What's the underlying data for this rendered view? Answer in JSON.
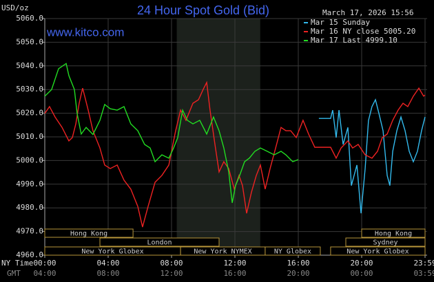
{
  "chart_data": {
    "type": "line",
    "title": "24 Hour Spot Gold (Bid)",
    "y_label": "USD/oz",
    "timestamp": "March 17, 2026 15:56",
    "watermark": "www.kitco.com",
    "x_label": "NY Time",
    "x2_label": "GMT",
    "xlim": [
      0,
      24
    ],
    "ylim": [
      4960,
      5060
    ],
    "grid": true,
    "legend": "top-right",
    "yticks": [
      {
        "value": 4960,
        "label": "4960.0"
      },
      {
        "value": 4970,
        "label": "4970.0"
      },
      {
        "value": 4980,
        "label": "4980.0"
      },
      {
        "value": 4990,
        "label": "4990.0"
      },
      {
        "value": 5000,
        "label": "5000.0"
      },
      {
        "value": 5010,
        "label": "5010.0"
      },
      {
        "value": 5020,
        "label": "5020.0"
      },
      {
        "value": 5030,
        "label": "5030.0"
      },
      {
        "value": 5040,
        "label": "5040.0"
      },
      {
        "value": 5050,
        "label": "5050.0"
      },
      {
        "value": 5060,
        "label": "5060.0"
      }
    ],
    "xticks": [
      {
        "value": 0,
        "label": "00:00"
      },
      {
        "value": 4,
        "label": "04:00"
      },
      {
        "value": 8,
        "label": "08:00"
      },
      {
        "value": 12,
        "label": "12:00"
      },
      {
        "value": 16,
        "label": "16:00"
      },
      {
        "value": 20,
        "label": "20:00"
      },
      {
        "value": 24,
        "label": "23:59"
      }
    ],
    "x2ticks": [
      {
        "value": 0,
        "label": "04:00"
      },
      {
        "value": 4,
        "label": "08:00"
      },
      {
        "value": 8,
        "label": "12:00"
      },
      {
        "value": 12,
        "label": "16:00"
      },
      {
        "value": 16,
        "label": "20:00"
      },
      {
        "value": 20,
        "label": "00:00"
      },
      {
        "value": 24,
        "label": "03:59"
      }
    ],
    "shaded_range": [
      8.33,
      13.6
    ],
    "sessions": [
      {
        "label": "Hong Kong",
        "row": 0,
        "start": 0,
        "end": 5.57
      },
      {
        "label": "Hong Kong",
        "row": 0,
        "start": 20,
        "end": 24
      },
      {
        "label": "London",
        "row": 1,
        "start": 3.48,
        "end": 11
      },
      {
        "label": "Sydney",
        "row": 1,
        "start": 19,
        "end": 24
      },
      {
        "label": "New York Globex",
        "row": 2,
        "start": 0,
        "end": 8.57
      },
      {
        "label": "New York NYMEX",
        "row": 2,
        "start": 8.57,
        "end": 13.91
      },
      {
        "label": "NY Globex",
        "row": 2,
        "start": 13.91,
        "end": 17.39
      },
      {
        "label": "New York Globex",
        "row": 2,
        "start": 18.04,
        "end": 24
      }
    ],
    "series": [
      {
        "name": "Mar 15 Sunday",
        "color": "#33bbee",
        "x": [
          17.3,
          18.04,
          18.17,
          18.39,
          18.57,
          18.83,
          19.13,
          19.35,
          19.7,
          19.96,
          20.22,
          20.43,
          20.65,
          20.87,
          21.09,
          21.35,
          21.61,
          21.78,
          21.96,
          22.22,
          22.48,
          22.74,
          23,
          23.26,
          23.52,
          23.78,
          24
        ],
        "values": [
          5017.8,
          5017.8,
          5021.3,
          5009.7,
          5021.3,
          5006.8,
          5014,
          4989.4,
          4998.1,
          4977.7,
          4996.6,
          5016.9,
          5022.8,
          5025.7,
          5019.9,
          5012.6,
          4993.7,
          4989.4,
          5003.9,
          5012.6,
          5018.4,
          5012.6,
          5003.9,
          4999.5,
          5003.9,
          5012.6,
          5018.4
        ]
      },
      {
        "name": "Mar 16 NY close 5005.20",
        "color": "#ee2222",
        "x": [
          0,
          0.3,
          0.65,
          1.09,
          1.52,
          1.74,
          1.96,
          2.17,
          2.39,
          2.74,
          3.04,
          3.48,
          3.78,
          4.13,
          4.57,
          5,
          5.43,
          5.87,
          6.17,
          6.52,
          6.96,
          7.39,
          7.83,
          8.26,
          8.57,
          8.91,
          9.35,
          9.7,
          10,
          10.22,
          10.43,
          10.74,
          11,
          11.3,
          11.61,
          11.96,
          12.26,
          12.48,
          12.74,
          13.04,
          13.35,
          13.61,
          13.91,
          14.22,
          14.57,
          14.91,
          15.22,
          15.52,
          15.87,
          16.3,
          16.65,
          17.04,
          18.04,
          18.39,
          18.7,
          19.13,
          19.43,
          19.78,
          20.22,
          20.65,
          21,
          21.3,
          21.61,
          21.96,
          22.3,
          22.61,
          22.91,
          23.26,
          23.61,
          23.91,
          24
        ],
        "values": [
          5019.9,
          5022.8,
          5018.4,
          5014,
          5008.3,
          5009.7,
          5015.5,
          5024.2,
          5030.6,
          5021.3,
          5012.6,
          5005.3,
          4998.1,
          4996.6,
          4998.1,
          4991.7,
          4987.9,
          4980.6,
          4971.9,
          4980.6,
          4990.8,
          4993.7,
          4998.1,
          5012.6,
          5021.3,
          5017,
          5024.2,
          5025.7,
          5030.1,
          5033,
          5021.3,
          5006.8,
          4995.2,
          4999.5,
          4996.6,
          4987.9,
          4993.7,
          4989.4,
          4977.7,
          4986.5,
          4993.7,
          4998.1,
          4987.9,
          4996.6,
          5005.3,
          5014,
          5012.6,
          5012.6,
          5009.7,
          5017,
          5011.2,
          5005.6,
          5005.6,
          5001,
          5005.3,
          5008.3,
          5005.3,
          5006.8,
          5002.4,
          5001,
          5003.9,
          5009.7,
          5011.2,
          5017,
          5021.3,
          5024.2,
          5022.8,
          5027.2,
          5030.6,
          5027.2,
          5027.7
        ]
      },
      {
        "name": "Mar 17 Last 4999.10",
        "color": "#22dd22",
        "x": [
          0,
          0.43,
          0.87,
          1.35,
          1.52,
          1.87,
          2.04,
          2.3,
          2.61,
          3.04,
          3.48,
          3.78,
          4.13,
          4.57,
          5,
          5.43,
          5.87,
          6.3,
          6.65,
          6.96,
          7.39,
          7.83,
          8.13,
          8.39,
          8.7,
          9,
          9.35,
          9.78,
          10.22,
          10.65,
          11,
          11.3,
          11.61,
          11.83,
          12.04,
          12.3,
          12.61,
          12.91,
          13.26,
          13.61,
          14.04,
          14.48,
          14.91,
          15.22,
          15.65,
          16
        ],
        "values": [
          5027.2,
          5030,
          5038.8,
          5041,
          5035.9,
          5030,
          5019.9,
          5011.2,
          5014,
          5011,
          5017,
          5023.7,
          5021.9,
          5021.3,
          5022.8,
          5015.5,
          5012.6,
          5006.8,
          5005.3,
          4999.5,
          5002.4,
          5001,
          5005.3,
          5009.7,
          5021.3,
          5017,
          5015.5,
          5017,
          5011.2,
          5018.4,
          5012.6,
          5005.3,
          4995.2,
          4982.1,
          4989.4,
          4993.7,
          4999.5,
          5001,
          5003.9,
          5005.3,
          5003.9,
          5002.4,
          5003.9,
          5002.4,
          4999.5,
          5000.4
        ]
      }
    ]
  }
}
